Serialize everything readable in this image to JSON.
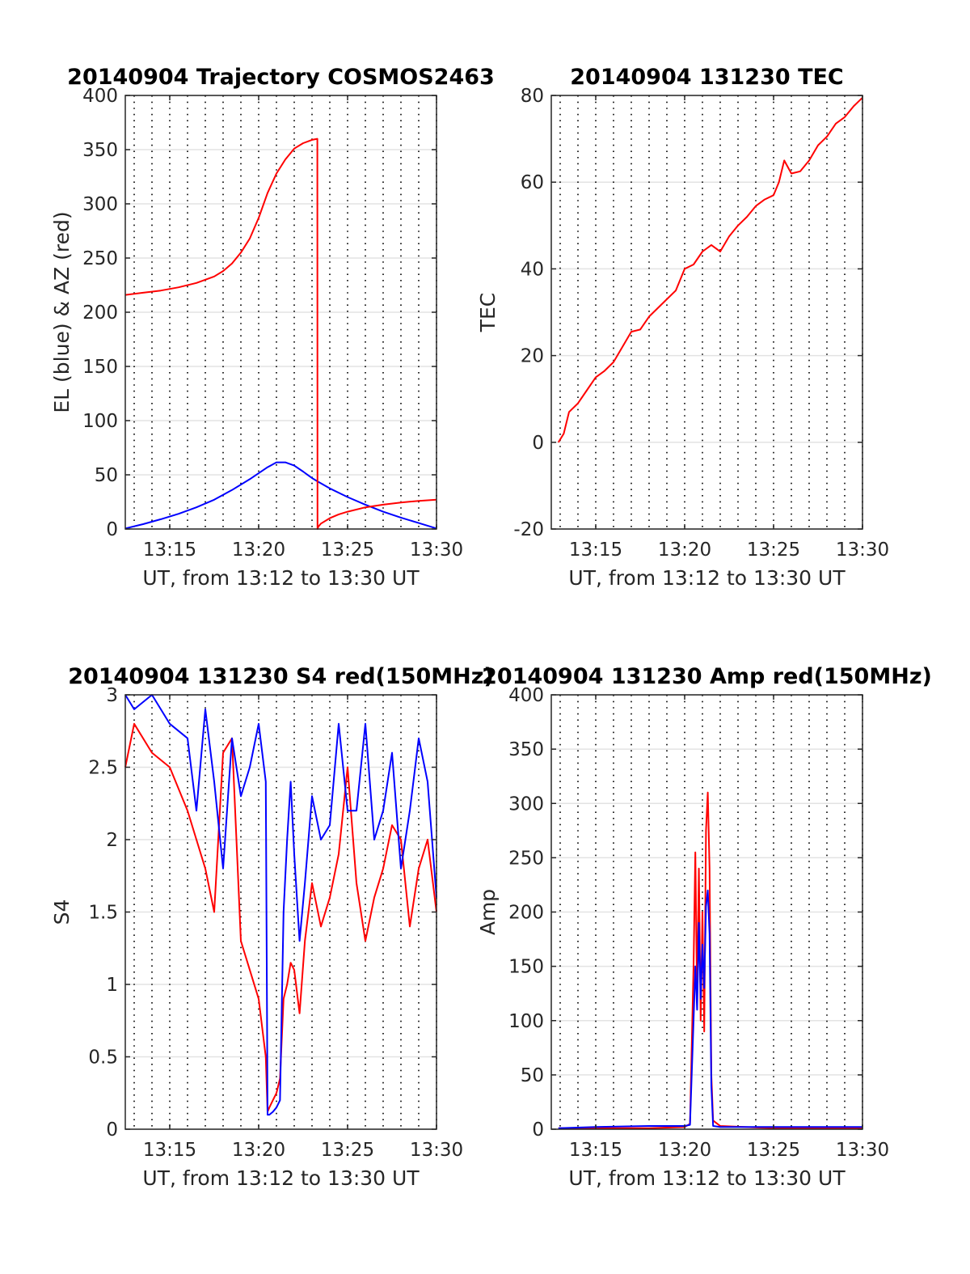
{
  "chart_data": [
    {
      "type": "line",
      "title": "20140904 Trajectory COSMOS2463",
      "xlabel": "UT, from 13:12 to 13:30 UT",
      "ylabel": "EL (blue) & AZ (red)",
      "xlim": [
        12.5,
        30
      ],
      "ylim": [
        0,
        400
      ],
      "xticks": [
        15,
        20,
        25,
        30
      ],
      "xtick_labels": [
        "13:15",
        "13:20",
        "13:25",
        "13:30"
      ],
      "yticks": [
        0,
        50,
        100,
        150,
        200,
        250,
        300,
        350,
        400
      ],
      "ytick_labels": [
        "0",
        "50",
        "100",
        "150",
        "200",
        "250",
        "300",
        "350",
        "400"
      ],
      "grid": "minor dotted vertical, major horizontal",
      "series": [
        {
          "color": "#0000ff",
          "x": [
            12.5,
            13.5,
            14.5,
            15.5,
            16.5,
            17.5,
            18.5,
            19.5,
            20.5,
            21.0,
            21.5,
            22.0,
            22.5,
            23.0,
            23.3,
            24.0,
            25.0,
            26.0,
            27.0,
            28.0,
            29.0,
            30.0
          ],
          "values": [
            0.5,
            4.5,
            9,
            14,
            20,
            27,
            36,
            46,
            57,
            61.5,
            61.5,
            58.5,
            53,
            47,
            44,
            37.5,
            29.5,
            22.5,
            16,
            10.5,
            5.5,
            0.5
          ]
        },
        {
          "color": "#ff0000",
          "x": [
            12.5,
            13.5,
            14.5,
            15.5,
            16.5,
            17.5,
            18.0,
            18.5,
            19.0,
            19.5,
            20.0,
            20.5,
            21.0,
            21.5,
            22.0,
            22.5,
            23.0,
            23.3,
            23.31,
            23.35,
            23.5,
            24.0,
            24.5,
            25.0,
            26.0,
            27.0,
            28.0,
            29.0,
            30.0
          ],
          "values": [
            216,
            218,
            220,
            223,
            227,
            233,
            238,
            245,
            255,
            268,
            287,
            310,
            328,
            341,
            351,
            356,
            359,
            360,
            0,
            2,
            5,
            10,
            13.5,
            16,
            20,
            22.5,
            24.5,
            26,
            27
          ]
        }
      ]
    },
    {
      "type": "line",
      "title": "20140904 131230 TEC",
      "xlabel": "UT, from 13:12 to 13:30 UT",
      "ylabel": "TEC",
      "xlim": [
        12.5,
        30
      ],
      "ylim": [
        -20,
        80
      ],
      "xticks": [
        15,
        20,
        25,
        30
      ],
      "xtick_labels": [
        "13:15",
        "13:20",
        "13:25",
        "13:30"
      ],
      "yticks": [
        -20,
        0,
        20,
        40,
        60,
        80
      ],
      "ytick_labels": [
        "-20",
        "0",
        "20",
        "40",
        "60",
        "80"
      ],
      "grid": "minor dotted vertical, major horizontal",
      "series": [
        {
          "color": "#ff0000",
          "x": [
            12.9,
            13.2,
            13.5,
            14.0,
            14.5,
            15.0,
            15.5,
            16.0,
            16.5,
            17.0,
            17.5,
            18.0,
            18.5,
            19.0,
            19.5,
            20.0,
            20.5,
            21.0,
            21.5,
            22.0,
            22.5,
            23.0,
            23.5,
            24.0,
            24.5,
            25.0,
            25.3,
            25.6,
            26.0,
            26.5,
            27.0,
            27.5,
            28.0,
            28.5,
            29.0,
            29.5,
            30.0
          ],
          "values": [
            0,
            2,
            7,
            9,
            12,
            15,
            16.5,
            18.5,
            22,
            25.5,
            26,
            29,
            31,
            33,
            35,
            40,
            41,
            44,
            45.5,
            44,
            47.5,
            50,
            52,
            54.5,
            56,
            57,
            60,
            65,
            62,
            62.5,
            65,
            68.5,
            70.5,
            73.5,
            75,
            77.5,
            79.5
          ]
        }
      ]
    },
    {
      "type": "line",
      "title": "20140904 131230 S4 red(150MHz)",
      "xlabel": "UT, from 13:12 to 13:30 UT",
      "ylabel": "S4",
      "xlim": [
        12.5,
        30
      ],
      "ylim": [
        0,
        3
      ],
      "xticks": [
        15,
        20,
        25,
        30
      ],
      "xtick_labels": [
        "13:15",
        "13:20",
        "13:25",
        "13:30"
      ],
      "yticks": [
        0,
        0.5,
        1,
        1.5,
        2,
        2.5,
        3
      ],
      "ytick_labels": [
        "0",
        "0.5",
        "1",
        "1.5",
        "2",
        "2.5",
        "3"
      ],
      "grid": "minor dotted vertical, major horizontal",
      "series": [
        {
          "color": "#ff0000",
          "x": [
            12.5,
            13.0,
            14.0,
            15.0,
            16.0,
            16.5,
            17.0,
            17.5,
            18.0,
            18.5,
            19.0,
            19.5,
            20.0,
            20.2,
            20.4,
            20.5,
            20.6,
            20.8,
            21.0,
            21.2,
            21.4,
            21.6,
            21.8,
            22.0,
            22.3,
            22.6,
            23.0,
            23.5,
            24.0,
            24.5,
            25.0,
            25.5,
            26.0,
            26.5,
            27.0,
            27.5,
            28.0,
            28.5,
            29.0,
            29.5,
            30.0
          ],
          "values": [
            2.5,
            2.8,
            2.6,
            2.5,
            2.2,
            2.0,
            1.8,
            1.5,
            2.6,
            2.7,
            1.3,
            1.1,
            0.9,
            0.7,
            0.5,
            0.12,
            0.15,
            0.2,
            0.25,
            0.35,
            0.9,
            1.0,
            1.15,
            1.1,
            0.8,
            1.3,
            1.7,
            1.4,
            1.6,
            1.9,
            2.5,
            1.7,
            1.3,
            1.6,
            1.8,
            2.1,
            2.0,
            1.4,
            1.8,
            2.0,
            1.5
          ]
        },
        {
          "color": "#0000ff",
          "x": [
            12.5,
            13.0,
            14.0,
            15.0,
            16.0,
            16.5,
            17.0,
            17.5,
            18.0,
            18.5,
            19.0,
            19.5,
            20.0,
            20.2,
            20.4,
            20.5,
            20.6,
            20.8,
            21.0,
            21.2,
            21.4,
            21.6,
            21.8,
            22.0,
            22.3,
            22.6,
            23.0,
            23.5,
            24.0,
            24.5,
            25.0,
            25.5,
            26.0,
            26.5,
            27.0,
            27.5,
            28.0,
            28.5,
            29.0,
            29.5,
            30.0
          ],
          "values": [
            3.0,
            2.9,
            3.0,
            2.8,
            2.7,
            2.2,
            2.9,
            2.4,
            1.8,
            2.7,
            2.3,
            2.5,
            2.8,
            2.6,
            2.4,
            0.1,
            0.1,
            0.12,
            0.15,
            0.2,
            1.5,
            2.0,
            2.4,
            1.9,
            1.3,
            1.7,
            2.3,
            2.0,
            2.1,
            2.8,
            2.2,
            2.2,
            2.8,
            2.0,
            2.2,
            2.6,
            1.8,
            2.2,
            2.7,
            2.4,
            1.6
          ]
        }
      ]
    },
    {
      "type": "line",
      "title": "20140904 131230 Amp red(150MHz)",
      "xlabel": "UT, from 13:12 to 13:30 UT",
      "ylabel": "Amp",
      "xlim": [
        12.5,
        30
      ],
      "ylim": [
        0,
        400
      ],
      "xticks": [
        15,
        20,
        25,
        30
      ],
      "xtick_labels": [
        "13:15",
        "13:20",
        "13:25",
        "13:30"
      ],
      "yticks": [
        0,
        50,
        100,
        150,
        200,
        250,
        300,
        350,
        400
      ],
      "ytick_labels": [
        "0",
        "50",
        "100",
        "150",
        "200",
        "250",
        "300",
        "350",
        "400"
      ],
      "grid": "minor dotted vertical, major horizontal",
      "series": [
        {
          "color": "#ff0000",
          "x": [
            12.9,
            15.0,
            18.0,
            20.0,
            20.3,
            20.5,
            20.6,
            20.7,
            20.8,
            20.9,
            21.0,
            21.1,
            21.2,
            21.3,
            21.4,
            21.5,
            21.6,
            22.0,
            25.0,
            30.0
          ],
          "values": [
            1,
            1,
            1,
            2,
            5,
            150,
            255,
            120,
            240,
            100,
            200,
            90,
            275,
            310,
            240,
            50,
            8,
            3,
            1,
            1
          ]
        },
        {
          "color": "#0000ff",
          "x": [
            12.9,
            15.0,
            18.0,
            20.0,
            20.3,
            20.5,
            20.6,
            20.7,
            20.8,
            20.9,
            21.0,
            21.1,
            21.2,
            21.3,
            21.4,
            21.5,
            21.6,
            22.0,
            25.0,
            30.0
          ],
          "values": [
            1,
            2,
            3,
            3,
            4,
            100,
            150,
            110,
            190,
            120,
            170,
            130,
            205,
            220,
            180,
            40,
            3,
            2,
            2,
            2
          ]
        }
      ]
    }
  ]
}
